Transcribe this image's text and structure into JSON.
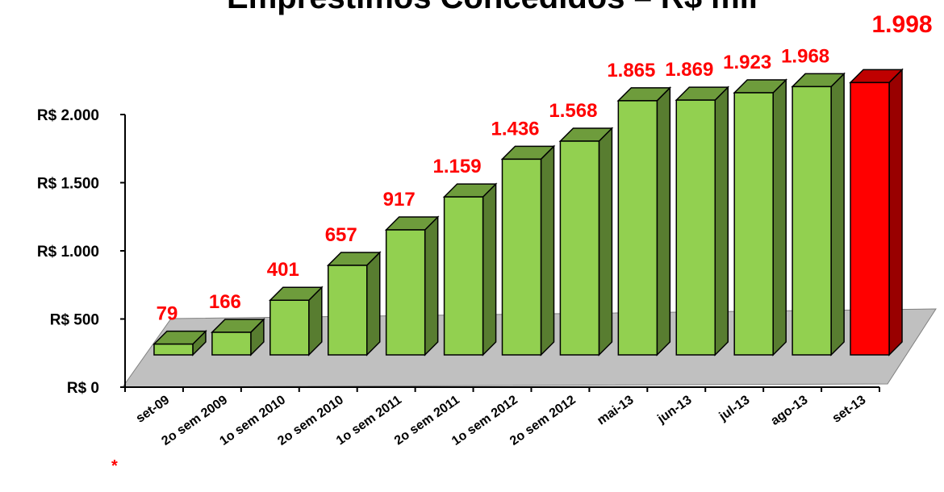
{
  "chart_data": {
    "type": "bar3d",
    "title": "Empréstimos Concedidos – R$ mil",
    "categories": [
      "set-09",
      "2o sem 2009",
      "1o sem 2010",
      "2o sem 2010",
      "1o sem 2011",
      "2o sem 2011",
      "1o sem 2012",
      "2o sem 2012",
      "mai-13",
      "jun-13",
      "jul-13",
      "ago-13",
      "set-13"
    ],
    "values": [
      79,
      166,
      401,
      657,
      917,
      1159,
      1436,
      1568,
      1865,
      1869,
      1923,
      1968,
      1998
    ],
    "value_labels": [
      "79",
      "166",
      "401",
      "657",
      "917",
      "1.159",
      "1.436",
      "1.568",
      "1.865",
      "1.869",
      "1.923",
      "1.968",
      "1.998"
    ],
    "colors": [
      "#92d050",
      "#92d050",
      "#92d050",
      "#92d050",
      "#92d050",
      "#92d050",
      "#92d050",
      "#92d050",
      "#92d050",
      "#92d050",
      "#92d050",
      "#92d050",
      "#ff0000"
    ],
    "ylim": [
      0,
      2000
    ],
    "yticks": [
      {
        "value": 0,
        "label": "R$ 0"
      },
      {
        "value": 500,
        "label": "R$ 500"
      },
      {
        "value": 1000,
        "label": "R$ 1.000"
      },
      {
        "value": 1500,
        "label": "R$ 1.500"
      },
      {
        "value": 2000,
        "label": "R$ 2.000"
      }
    ],
    "note_marker": "*"
  }
}
